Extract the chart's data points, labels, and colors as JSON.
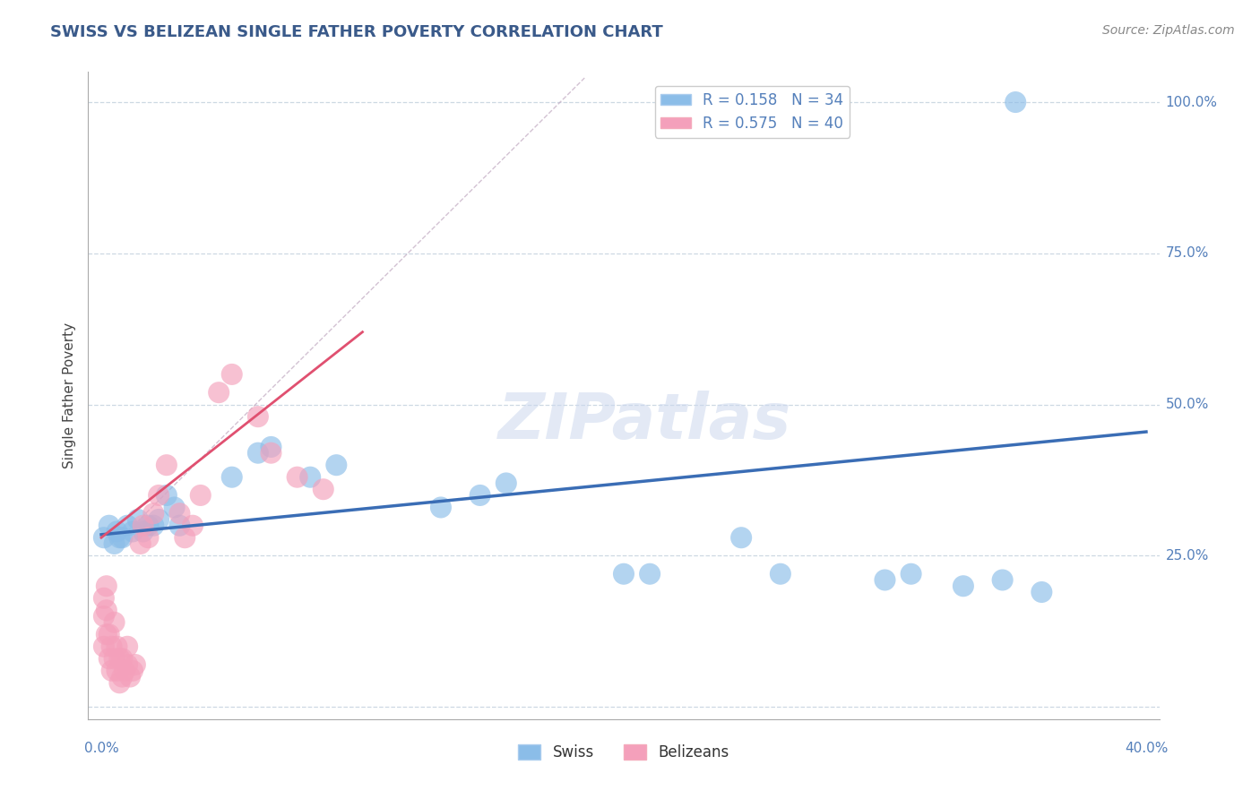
{
  "title": "SWISS VS BELIZEAN SINGLE FATHER POVERTY CORRELATION CHART",
  "source": "Source: ZipAtlas.com",
  "ylabel": "Single Father Poverty",
  "legend_swiss_label": "Swiss",
  "legend_belizeans_label": "Belizeans",
  "watermark_text": "ZIPatlas",
  "swiss_color": "#8bbde8",
  "belizean_color": "#f4a0bb",
  "swiss_line_color": "#3a6db5",
  "belizean_line_color": "#e05070",
  "dashed_line_color": "#c8a0b8",
  "grid_color": "#c8d4e0",
  "background_color": "#ffffff",
  "title_color": "#3a5a8a",
  "axis_label_color": "#5580bb",
  "swiss_R": 0.158,
  "swiss_N": 34,
  "belizean_R": 0.575,
  "belizean_N": 40,
  "swiss_x": [
    0.001,
    0.003,
    0.005,
    0.006,
    0.007,
    0.008,
    0.01,
    0.012,
    0.014,
    0.016,
    0.018,
    0.02,
    0.022,
    0.025,
    0.028,
    0.03,
    0.05,
    0.06,
    0.065,
    0.08,
    0.09,
    0.13,
    0.145,
    0.155,
    0.2,
    0.21,
    0.245,
    0.26,
    0.3,
    0.31,
    0.33,
    0.345,
    0.36,
    0.35
  ],
  "swiss_y": [
    0.28,
    0.3,
    0.27,
    0.29,
    0.28,
    0.28,
    0.3,
    0.29,
    0.31,
    0.29,
    0.3,
    0.3,
    0.31,
    0.35,
    0.33,
    0.3,
    0.38,
    0.42,
    0.43,
    0.38,
    0.4,
    0.33,
    0.35,
    0.37,
    0.22,
    0.22,
    0.28,
    0.22,
    0.21,
    0.22,
    0.2,
    0.21,
    0.19,
    1.0
  ],
  "belizean_x": [
    0.001,
    0.001,
    0.001,
    0.002,
    0.002,
    0.002,
    0.003,
    0.003,
    0.004,
    0.004,
    0.005,
    0.005,
    0.006,
    0.006,
    0.007,
    0.007,
    0.008,
    0.008,
    0.009,
    0.01,
    0.01,
    0.011,
    0.012,
    0.013,
    0.015,
    0.016,
    0.018,
    0.02,
    0.022,
    0.025,
    0.03,
    0.032,
    0.035,
    0.038,
    0.045,
    0.05,
    0.06,
    0.065,
    0.075,
    0.085
  ],
  "belizean_y": [
    0.1,
    0.15,
    0.18,
    0.12,
    0.16,
    0.2,
    0.08,
    0.12,
    0.06,
    0.1,
    0.08,
    0.14,
    0.06,
    0.1,
    0.04,
    0.08,
    0.05,
    0.08,
    0.06,
    0.07,
    0.1,
    0.05,
    0.06,
    0.07,
    0.27,
    0.3,
    0.28,
    0.32,
    0.35,
    0.4,
    0.32,
    0.28,
    0.3,
    0.35,
    0.52,
    0.55,
    0.48,
    0.42,
    0.38,
    0.36
  ],
  "dashed_line_x": [
    0.012,
    0.19
  ],
  "dashed_line_y": [
    0.28,
    1.05
  ],
  "x_min": 0.0,
  "x_max": 0.4,
  "y_min": 0.0,
  "y_max": 1.0
}
